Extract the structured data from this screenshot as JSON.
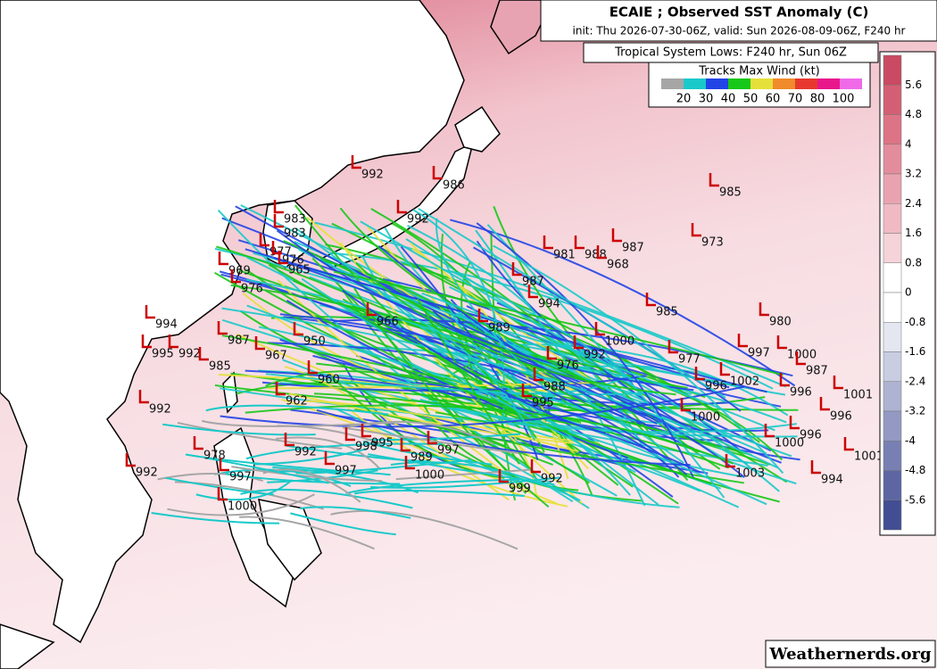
{
  "header": {
    "title": "ECAIE ; Observed SST Anomaly (C)",
    "subtitle": "init: Thu 2026-07-30-06Z, valid: Sun 2026-08-09-06Z, F240 hr"
  },
  "legend": {
    "title": "Tropical System Lows: F240 hr, Sun 06Z",
    "wind_title": "Tracks Max Wind (kt)",
    "wind_colors": [
      "#a6a6a6",
      "#19c9c9",
      "#2244e6",
      "#18c818",
      "#e6e03a",
      "#f08a2a",
      "#e8382e",
      "#e8178a",
      "#f06ae8"
    ],
    "wind_labels": [
      "20",
      "30",
      "40",
      "50",
      "60",
      "70",
      "80",
      "100"
    ]
  },
  "colorbar": {
    "ticks": [
      "5.6",
      "4.8",
      "4",
      "3.2",
      "2.4",
      "1.6",
      "0.8",
      "0",
      "-0.8",
      "-1.6",
      "-2.4",
      "-3.2",
      "-4",
      "-4.8",
      "-5.6"
    ],
    "colors": [
      "#c94a62",
      "#d45f74",
      "#dc7486",
      "#e38c9c",
      "#e9a3b0",
      "#efbac4",
      "#f5d3d9",
      "#ffffff",
      "#ffffff",
      "#e4e6f0",
      "#c9cde2",
      "#aeb3d3",
      "#9399c3",
      "#7880b3",
      "#5d66a3",
      "#434d93"
    ]
  },
  "lows": [
    "992",
    "986",
    "992",
    "985",
    "973",
    "983",
    "983",
    "977",
    "976",
    "965",
    "969",
    "976",
    "966",
    "989",
    "994",
    "987",
    "981",
    "988",
    "968",
    "987",
    "985",
    "980",
    "997",
    "1000",
    "987",
    "996",
    "1001",
    "996",
    "1002",
    "1000",
    "977",
    "996",
    "1000",
    "992",
    "976",
    "988",
    "995",
    "994",
    "995",
    "992",
    "985",
    "987",
    "967",
    "950",
    "962",
    "992",
    "960",
    "978",
    "992",
    "992",
    "998",
    "997",
    "995",
    "989",
    "1000",
    "997",
    "999",
    "992",
    "1003",
    "1000",
    "996",
    "1001",
    "994",
    "1000",
    "997"
  ],
  "watermark": "Weathernerds.org"
}
